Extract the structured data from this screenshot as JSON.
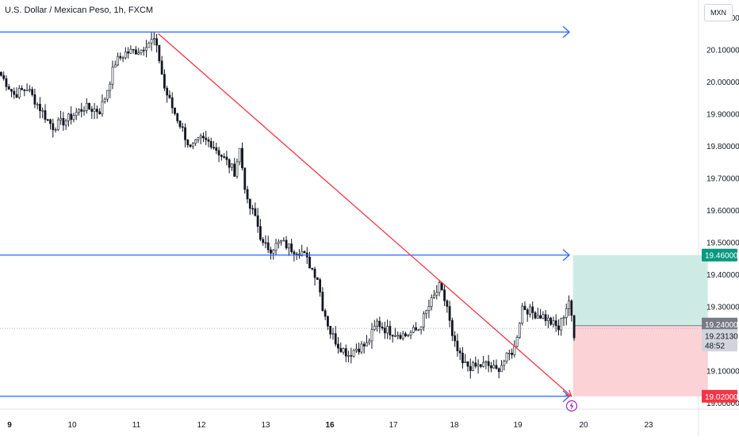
{
  "header": {
    "symbol_title": "U.S. Dollar / Mexican Peso, 1h, FXCM",
    "currency_button": "MXN"
  },
  "price_labels": {
    "target": "19.46000",
    "entry": "19.24000",
    "current_price": "19.23130",
    "countdown": "48:52",
    "stop": "19.02000"
  },
  "chart_data": {
    "type": "candlestick",
    "title": "U.S. Dollar / Mexican Peso, 1h, FXCM",
    "currency": "MXN",
    "ylim": [
      18.99,
      20.225
    ],
    "y_ticks": [
      20.2,
      20.1,
      20.0,
      19.9,
      19.8,
      19.7,
      19.6,
      19.5,
      19.4,
      19.3,
      19.1,
      19.0
    ],
    "x_ticks": [
      {
        "label": "9",
        "bold": true
      },
      {
        "label": "10",
        "bold": false
      },
      {
        "label": "11",
        "bold": false
      },
      {
        "label": "12",
        "bold": false
      },
      {
        "label": "13",
        "bold": false
      },
      {
        "label": "16",
        "bold": true
      },
      {
        "label": "17",
        "bold": false
      },
      {
        "label": "18",
        "bold": false
      },
      {
        "label": "19",
        "bold": false
      },
      {
        "label": "20",
        "bold": false
      },
      {
        "label": "23",
        "bold": false
      }
    ],
    "close_anchors": [
      [
        0,
        20.02
      ],
      [
        5,
        19.96
      ],
      [
        10,
        19.98
      ],
      [
        14,
        19.93
      ],
      [
        18,
        19.88
      ],
      [
        20,
        19.86
      ],
      [
        25,
        19.88
      ],
      [
        32,
        19.92
      ],
      [
        38,
        19.91
      ],
      [
        40,
        19.95
      ],
      [
        44,
        20.06
      ],
      [
        48,
        20.09
      ],
      [
        54,
        20.1
      ],
      [
        56,
        20.12
      ],
      [
        59,
        20.13
      ],
      [
        61,
        20.07
      ],
      [
        63,
        19.98
      ],
      [
        66,
        19.92
      ],
      [
        70,
        19.85
      ],
      [
        73,
        19.79
      ],
      [
        77,
        19.82
      ],
      [
        81,
        19.81
      ],
      [
        87,
        19.75
      ],
      [
        90,
        19.72
      ],
      [
        92,
        19.79
      ],
      [
        95,
        19.62
      ],
      [
        98,
        19.58
      ],
      [
        101,
        19.49
      ],
      [
        104,
        19.48
      ],
      [
        108,
        19.5
      ],
      [
        112,
        19.48
      ],
      [
        116,
        19.47
      ],
      [
        119,
        19.43
      ],
      [
        122,
        19.39
      ],
      [
        124,
        19.3
      ],
      [
        127,
        19.22
      ],
      [
        130,
        19.18
      ],
      [
        134,
        19.15
      ],
      [
        137,
        19.17
      ],
      [
        141,
        19.18
      ],
      [
        145,
        19.25
      ],
      [
        148,
        19.23
      ],
      [
        151,
        19.22
      ],
      [
        156,
        19.21
      ],
      [
        161,
        19.23
      ],
      [
        165,
        19.3
      ],
      [
        169,
        19.36
      ],
      [
        172,
        19.3
      ],
      [
        174,
        19.2
      ],
      [
        178,
        19.12
      ],
      [
        182,
        19.11
      ],
      [
        187,
        19.12
      ],
      [
        191,
        19.1
      ],
      [
        194,
        19.13
      ],
      [
        198,
        19.17
      ],
      [
        201,
        19.3
      ],
      [
        205,
        19.28
      ],
      [
        209,
        19.27
      ],
      [
        212,
        19.25
      ],
      [
        215,
        19.23
      ],
      [
        219,
        19.32
      ],
      [
        221,
        19.2
      ]
    ],
    "horizontal_levels": [
      {
        "price": 20.155,
        "color": "#2962ff",
        "arrow": true
      },
      {
        "price": 19.46,
        "color": "#2962ff",
        "arrow": true
      },
      {
        "price": 19.02,
        "color": "#2962ff",
        "arrow": true
      }
    ],
    "trend_line": {
      "color": "#f23645",
      "start_hour": 61,
      "start_price": 20.15,
      "end_hour": 221,
      "end_price": 19.02
    },
    "position": {
      "side": "long",
      "start_hour": 221,
      "end_hour": 273,
      "entry": 19.24,
      "target": 19.46,
      "stop": 19.02,
      "profit_color": "#cdebe4",
      "loss_color": "#fbd2d6"
    },
    "colors": {
      "candles": "#131722",
      "axis_text": "#131722",
      "target_label_bg": "#089981",
      "entry_label_bg": "#787b86",
      "stop_label_bg": "#f23645",
      "current_label_bg": "#d1d4dc"
    }
  }
}
